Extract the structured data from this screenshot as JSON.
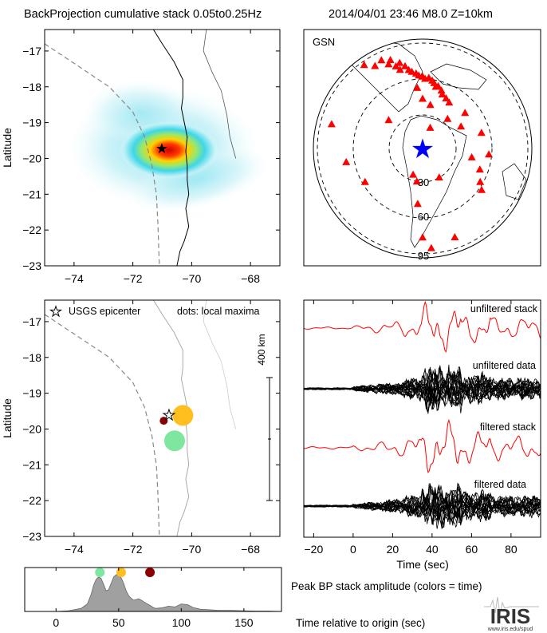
{
  "header": {
    "title": "BackProjection cumulative stack 0.05to0.25Hz",
    "event": "2014/04/01 23:46   M8.0   Z=10km"
  },
  "colors": {
    "axis": "#000000",
    "trench": "#888888",
    "coast": "#000000",
    "stack": "#ff0000",
    "data": "#000000",
    "station": "#ff0000",
    "epicenter_star": "#0000ff",
    "envelope_fill": "#a0a0a0"
  },
  "chart_data": [
    {
      "id": "bp-map",
      "type": "heatmap",
      "title": "",
      "xlabel": "",
      "ylabel": "Latitude",
      "xlim": [
        -75,
        -67
      ],
      "ylim": [
        -23,
        -16.4
      ],
      "xticks": [
        -74,
        -72,
        -70,
        -68
      ],
      "yticks": [
        -17,
        -18,
        -19,
        -20,
        -21,
        -22,
        -23
      ],
      "epicenter": {
        "lon": -70.77,
        "lat": -19.61
      },
      "peak": {
        "lon": -70.45,
        "lat": -19.65
      }
    },
    {
      "id": "gsn-map",
      "type": "scatter",
      "network_label": "GSN",
      "distance_labels": [
        "30",
        "60",
        "95"
      ],
      "distance_rings_deg": [
        30,
        60,
        95
      ],
      "stations_azimuth_distance": [
        [
          340,
          85
        ],
        [
          345,
          80
        ],
        [
          350,
          72
        ],
        [
          355,
          68
        ],
        [
          0,
          65
        ],
        [
          5,
          64
        ],
        [
          10,
          60
        ],
        [
          14,
          58
        ],
        [
          18,
          55
        ],
        [
          348,
          76
        ],
        [
          352,
          70
        ],
        [
          357,
          66
        ],
        [
          2,
          63
        ],
        [
          8,
          62
        ],
        [
          12,
          57
        ],
        [
          20,
          52
        ],
        [
          25,
          50
        ],
        [
          30,
          48
        ],
        [
          335,
          88
        ],
        [
          338,
          82
        ],
        [
          342,
          78
        ],
        [
          344,
          74
        ],
        [
          325,
          92
        ],
        [
          330,
          86
        ],
        [
          355,
          55
        ],
        [
          0,
          45
        ],
        [
          10,
          40
        ],
        [
          40,
          35
        ],
        [
          60,
          40
        ],
        [
          75,
          55
        ],
        [
          95,
          60
        ],
        [
          110,
          55
        ],
        [
          120,
          60
        ],
        [
          125,
          65
        ],
        [
          200,
          25
        ],
        [
          240,
          60
        ],
        [
          260,
          70
        ],
        [
          285,
          85
        ],
        [
          190,
          30
        ],
        [
          185,
          50
        ],
        [
          180,
          80
        ],
        [
          175,
          90
        ],
        [
          160,
          85
        ],
        [
          150,
          30
        ],
        [
          20,
          20
        ],
        [
          50,
          50
        ],
        [
          100,
          45
        ],
        [
          310,
          40
        ]
      ]
    },
    {
      "id": "maxima-map",
      "type": "scatter",
      "legend_epicenter": "USGS epicenter",
      "legend_dots": "dots: local maxima",
      "scale_label": "400 km",
      "ylabel": "Latitude",
      "xlim": [
        -75,
        -67
      ],
      "ylim": [
        -23,
        -16.4
      ],
      "xticks": [
        -74,
        -72,
        -70,
        -68
      ],
      "yticks": [
        -17,
        -18,
        -19,
        -20,
        -21,
        -22,
        -23
      ],
      "epicenter": {
        "lon": -70.77,
        "lat": -19.61
      },
      "maxima": [
        {
          "lon": -70.58,
          "lat": -20.33,
          "time": 35,
          "color": "#7fe6a0",
          "size": "large"
        },
        {
          "lon": -70.3,
          "lat": -19.62,
          "time": 52,
          "color": "#ffbf1f",
          "size": "large"
        },
        {
          "lon": -70.95,
          "lat": -19.77,
          "time": 75,
          "color": "#8b0000",
          "size": "small"
        }
      ]
    },
    {
      "id": "traces",
      "type": "line",
      "xlabel": "Time (sec)",
      "xlim": [
        -25,
        95
      ],
      "xticks": [
        -20,
        0,
        20,
        40,
        60,
        80
      ],
      "series": [
        {
          "name": "unfiltered stack"
        },
        {
          "name": "unfiltered data"
        },
        {
          "name": "filtered stack"
        },
        {
          "name": "filtered data"
        }
      ]
    },
    {
      "id": "envelope",
      "type": "area",
      "annotation": "Peak BP stack amplitude (colors = time)",
      "xlabel": "Time relative to origin (sec)",
      "xlim": [
        -25,
        180
      ],
      "xticks": [
        0,
        50,
        100,
        150
      ],
      "peaks": [
        {
          "time": 35,
          "color": "#7fe6a0"
        },
        {
          "time": 52,
          "color": "#ffbf1f"
        },
        {
          "time": 75,
          "color": "#8b0000"
        }
      ],
      "x": [
        -25,
        0,
        10,
        20,
        25,
        28,
        30,
        32,
        34,
        36,
        38,
        40,
        42,
        44,
        46,
        48,
        50,
        52,
        54,
        56,
        58,
        60,
        62,
        64,
        66,
        68,
        70,
        72,
        74,
        76,
        78,
        80,
        85,
        90,
        95,
        100,
        105,
        110,
        115,
        120,
        125,
        130,
        140,
        150,
        160,
        170,
        180
      ],
      "values": [
        0,
        0,
        0.02,
        0.08,
        0.2,
        0.45,
        0.7,
        0.85,
        0.92,
        0.88,
        0.72,
        0.55,
        0.58,
        0.75,
        0.92,
        0.98,
        0.97,
        0.9,
        0.75,
        0.55,
        0.42,
        0.35,
        0.3,
        0.32,
        0.34,
        0.3,
        0.26,
        0.22,
        0.18,
        0.14,
        0.1,
        0.08,
        0.1,
        0.14,
        0.12,
        0.2,
        0.18,
        0.1,
        0.06,
        0.05,
        0.04,
        0.03,
        0.03,
        0.02,
        0.01,
        0.01,
        0
      ]
    }
  ],
  "logo": {
    "text": "IRIS",
    "url": "www.iris.edu/spud"
  }
}
